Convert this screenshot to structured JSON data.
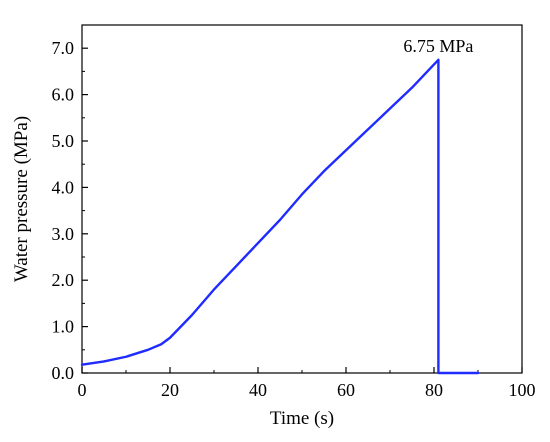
{
  "chart_data": {
    "type": "line",
    "xlabel": "Time (s)",
    "ylabel": "Water pressure (MPa)",
    "xlim": [
      0,
      100
    ],
    "ylim": [
      0.0,
      7.5
    ],
    "x_ticks": [
      "0",
      "20",
      "40",
      "60",
      "80",
      "100"
    ],
    "y_ticks": [
      "0.0",
      "1.0",
      "2.0",
      "3.0",
      "4.0",
      "5.0",
      "6.0",
      "7.0"
    ],
    "grid": false,
    "legend": "none",
    "color": "#1f2bff",
    "annotation": {
      "text": "6.75 MPa",
      "x": 81,
      "y": 6.75
    },
    "series": [
      {
        "x": [
          0,
          5,
          10,
          15,
          18,
          20,
          25,
          30,
          35,
          40,
          45,
          50,
          55,
          60,
          65,
          70,
          75,
          80,
          81,
          81,
          90
        ],
        "y": [
          0.18,
          0.25,
          0.35,
          0.5,
          0.62,
          0.76,
          1.25,
          1.8,
          2.3,
          2.8,
          3.3,
          3.85,
          4.35,
          4.8,
          5.25,
          5.7,
          6.15,
          6.65,
          6.75,
          0.0,
          0.0
        ]
      }
    ]
  }
}
